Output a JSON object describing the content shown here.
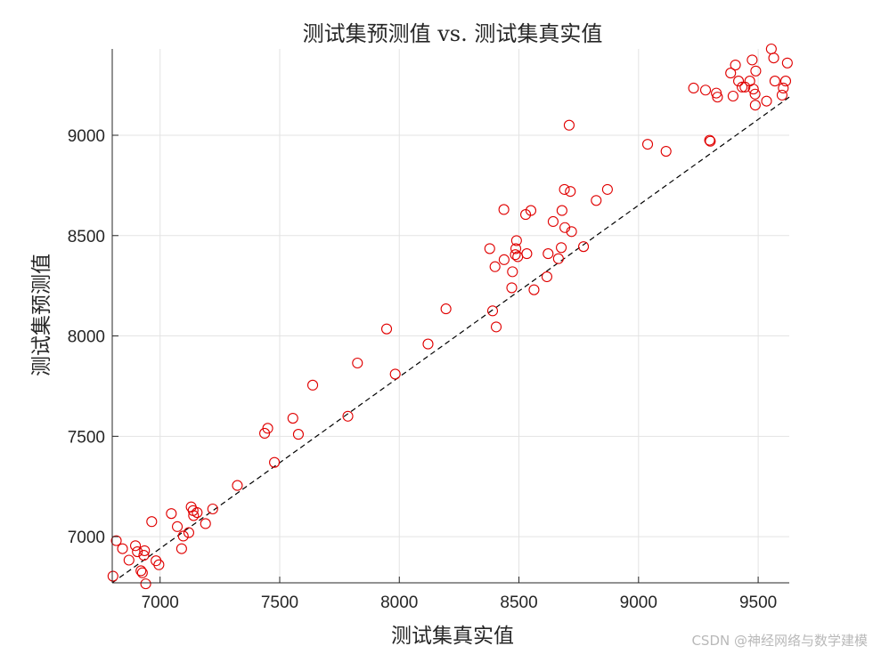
{
  "chart_data": {
    "type": "scatter",
    "title": "测试集预测值 vs. 测试集真实值",
    "xlabel": "测试集真实值",
    "ylabel": "测试集预测值",
    "xlim": [
      6800,
      9630
    ],
    "ylim": [
      6770,
      9430
    ],
    "xticks": [
      7000,
      7500,
      8000,
      8500,
      9000,
      9500
    ],
    "yticks": [
      7000,
      7500,
      8000,
      8500,
      9000
    ],
    "grid": true,
    "marker_color": "#e00000",
    "reference_line_color": "#000000",
    "reference_line": [
      [
        6800,
        6770
      ],
      [
        9630,
        9190
      ]
    ],
    "points": [
      [
        6803,
        6803
      ],
      [
        6817,
        6980
      ],
      [
        6843,
        6940
      ],
      [
        6870,
        6883
      ],
      [
        6897,
        6955
      ],
      [
        6905,
        6925
      ],
      [
        6920,
        6830
      ],
      [
        6926,
        6820
      ],
      [
        6932,
        6907
      ],
      [
        6935,
        6930
      ],
      [
        6940,
        6765
      ],
      [
        6965,
        7075
      ],
      [
        6983,
        6880
      ],
      [
        6995,
        6860
      ],
      [
        7047,
        7115
      ],
      [
        7072,
        7050
      ],
      [
        7090,
        6940
      ],
      [
        7097,
        7003
      ],
      [
        7120,
        7020
      ],
      [
        7130,
        7148
      ],
      [
        7138,
        7130
      ],
      [
        7140,
        7105
      ],
      [
        7155,
        7120
      ],
      [
        7190,
        7065
      ],
      [
        7220,
        7138
      ],
      [
        7323,
        7255
      ],
      [
        7437,
        7515
      ],
      [
        7450,
        7540
      ],
      [
        7478,
        7370
      ],
      [
        7555,
        7590
      ],
      [
        7578,
        7510
      ],
      [
        7638,
        7755
      ],
      [
        7785,
        7600
      ],
      [
        7825,
        7865
      ],
      [
        7947,
        8035
      ],
      [
        7983,
        7810
      ],
      [
        8120,
        7960
      ],
      [
        8195,
        8135
      ],
      [
        8378,
        8435
      ],
      [
        8390,
        8125
      ],
      [
        8400,
        8345
      ],
      [
        8405,
        8045
      ],
      [
        8438,
        8380
      ],
      [
        8437,
        8630
      ],
      [
        8470,
        8240
      ],
      [
        8473,
        8320
      ],
      [
        8485,
        8405
      ],
      [
        8487,
        8435
      ],
      [
        8490,
        8475
      ],
      [
        8495,
        8395
      ],
      [
        8528,
        8605
      ],
      [
        8533,
        8410
      ],
      [
        8550,
        8625
      ],
      [
        8563,
        8230
      ],
      [
        8617,
        8295
      ],
      [
        8622,
        8410
      ],
      [
        8643,
        8570
      ],
      [
        8665,
        8385
      ],
      [
        8677,
        8440
      ],
      [
        8680,
        8625
      ],
      [
        8690,
        8730
      ],
      [
        8692,
        8540
      ],
      [
        8710,
        9050
      ],
      [
        8715,
        8720
      ],
      [
        8720,
        8520
      ],
      [
        8770,
        8445
      ],
      [
        8823,
        8675
      ],
      [
        8870,
        8730
      ],
      [
        9038,
        8955
      ],
      [
        9115,
        8920
      ],
      [
        9230,
        9235
      ],
      [
        9280,
        9225
      ],
      [
        9297,
        8975
      ],
      [
        9300,
        8970
      ],
      [
        9325,
        9210
      ],
      [
        9330,
        9190
      ],
      [
        9385,
        9310
      ],
      [
        9395,
        9195
      ],
      [
        9405,
        9350
      ],
      [
        9418,
        9270
      ],
      [
        9433,
        9240
      ],
      [
        9445,
        9240
      ],
      [
        9465,
        9270
      ],
      [
        9475,
        9375
      ],
      [
        9480,
        9230
      ],
      [
        9488,
        9150
      ],
      [
        9487,
        9205
      ],
      [
        9490,
        9320
      ],
      [
        9535,
        9170
      ],
      [
        9555,
        9430
      ],
      [
        9565,
        9385
      ],
      [
        9570,
        9270
      ],
      [
        9600,
        9200
      ],
      [
        9605,
        9235
      ],
      [
        9615,
        9270
      ],
      [
        9622,
        9360
      ]
    ]
  },
  "watermark": "CSDN @神经网络与数学建模"
}
